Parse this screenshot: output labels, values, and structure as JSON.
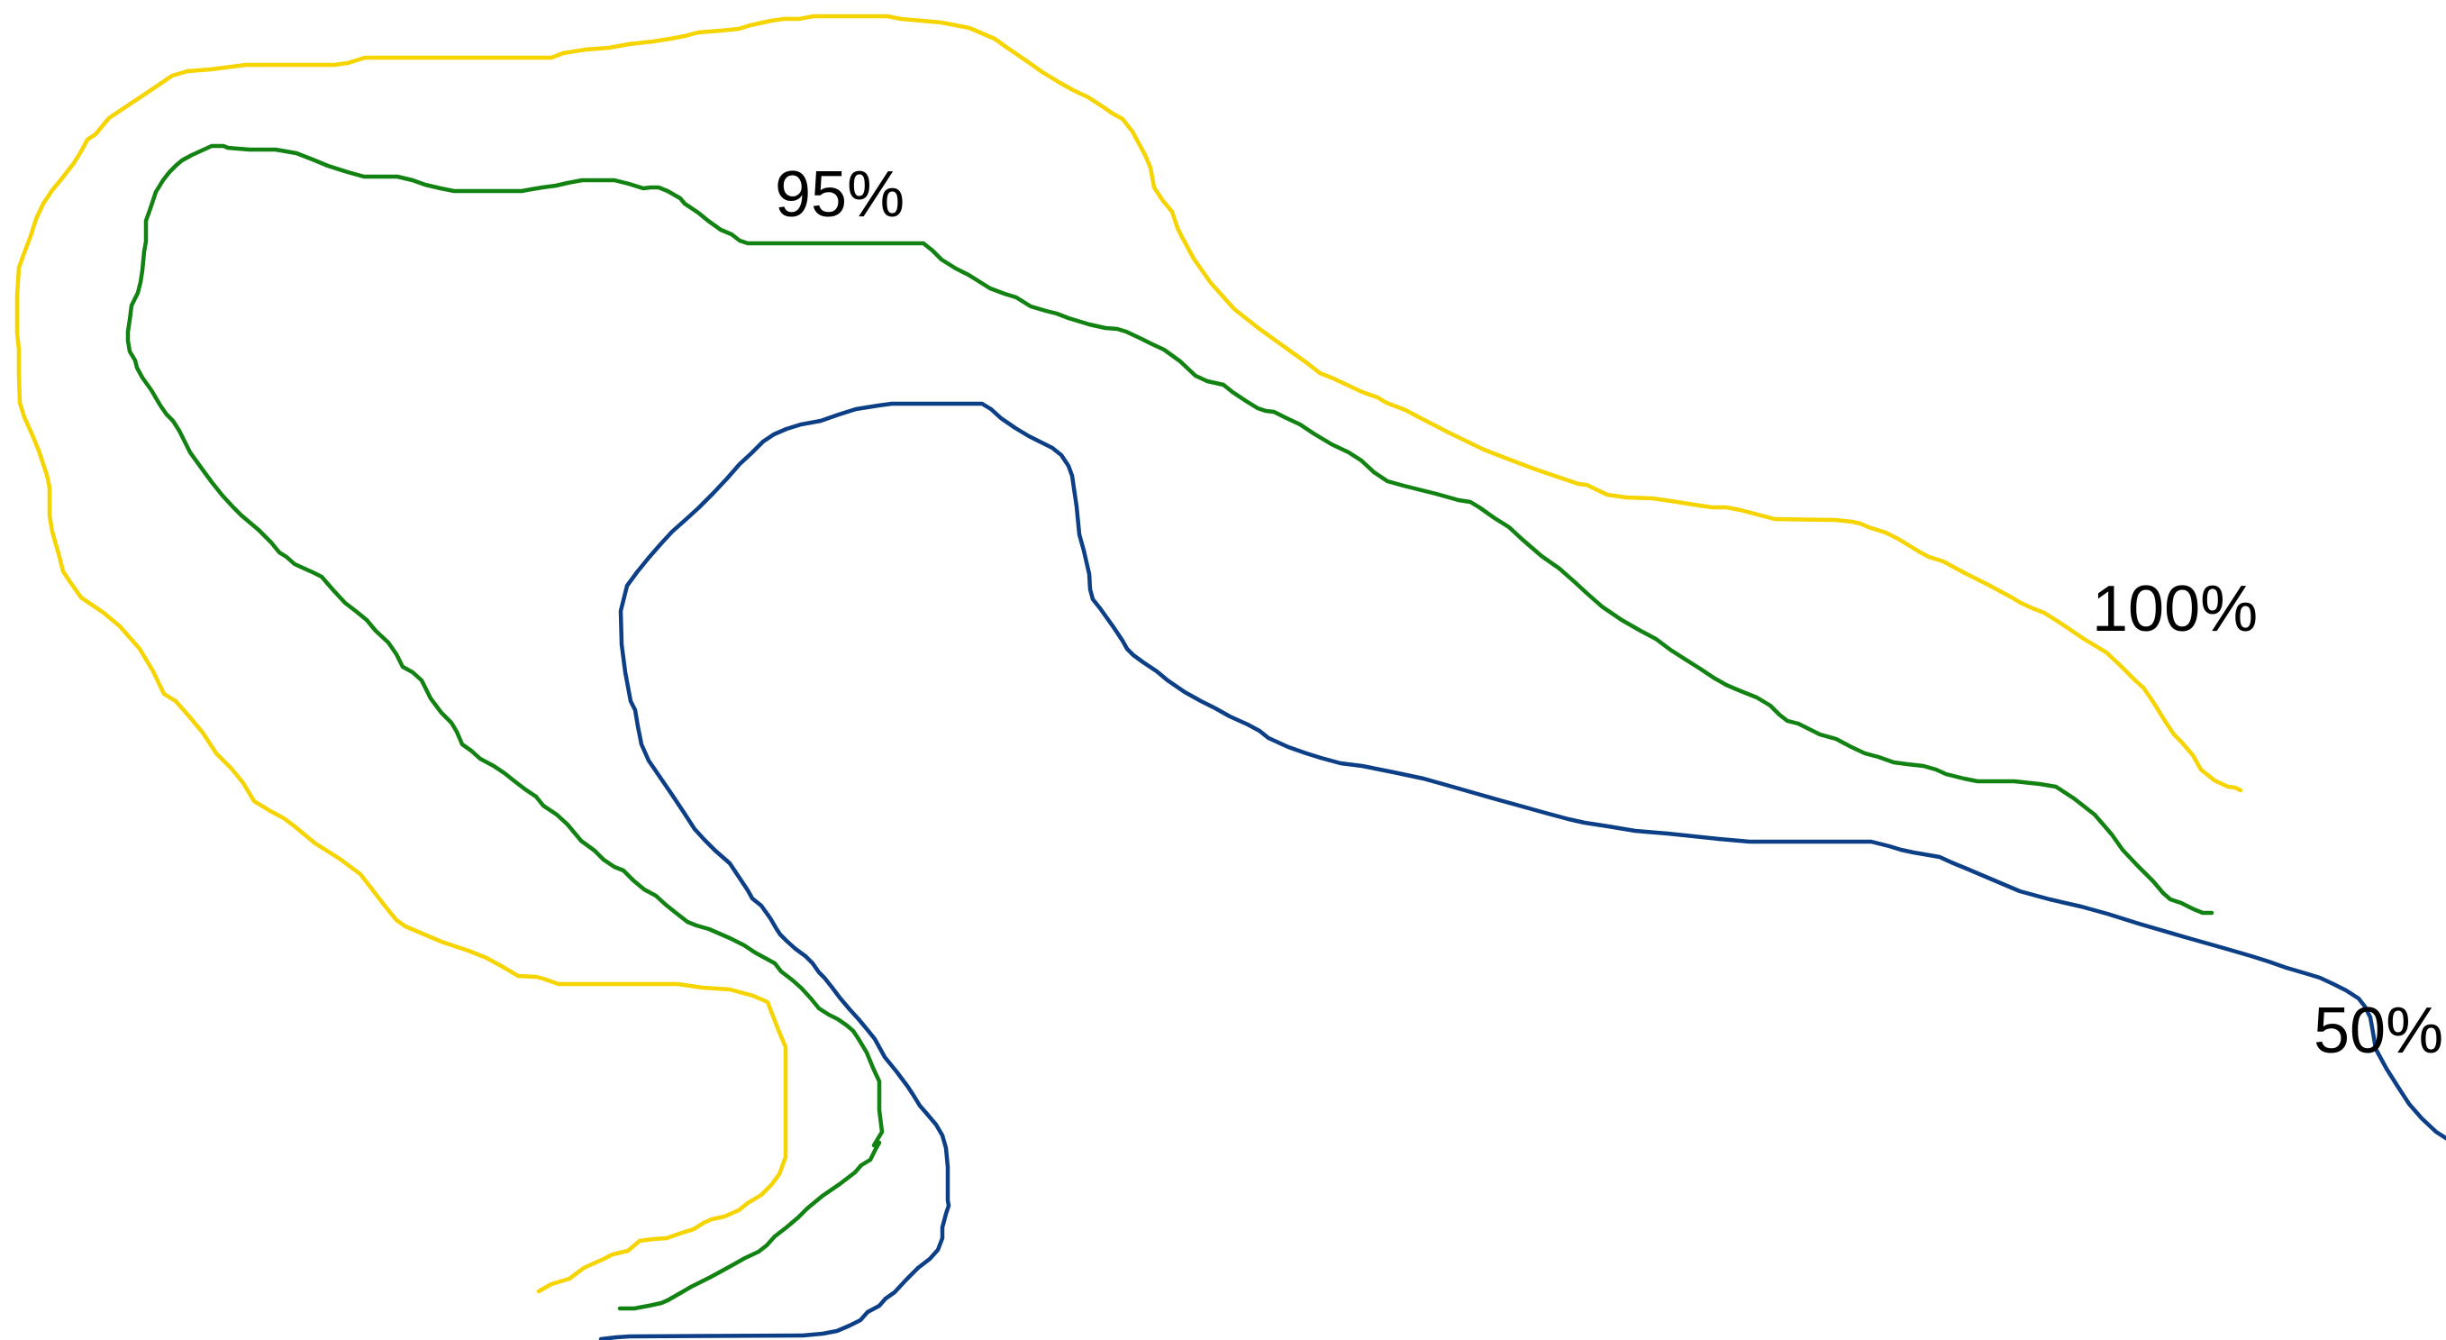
{
  "contours": [
    {
      "id": "contour-100",
      "label": "100%",
      "color": "#f5d400"
    },
    {
      "id": "contour-95",
      "label": "95%",
      "color": "#128312"
    },
    {
      "id": "contour-50",
      "label": "50%",
      "color": "#0d3f86"
    }
  ]
}
